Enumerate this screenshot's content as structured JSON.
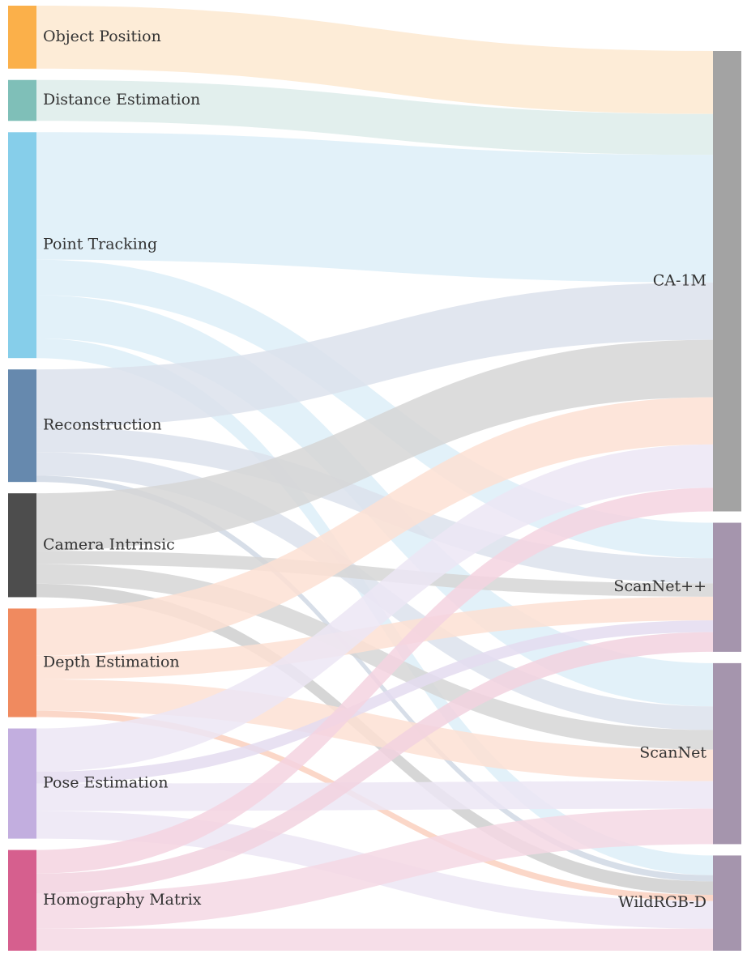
{
  "chart_data": {
    "type": "sankey",
    "title": "",
    "sources": [
      {
        "id": "object_position",
        "label": "Object Position",
        "color": "#FBB04A"
      },
      {
        "id": "distance_estimation",
        "label": "Distance Estimation",
        "color": "#7FBFB8"
      },
      {
        "id": "point_tracking",
        "label": "Point Tracking",
        "color": "#86CEEA"
      },
      {
        "id": "reconstruction",
        "label": "Reconstruction",
        "color": "#6689AE"
      },
      {
        "id": "camera_intrinsic",
        "label": "Camera Intrinsic",
        "color": "#4D4D4D"
      },
      {
        "id": "depth_estimation",
        "label": "Depth Estimation",
        "color": "#F08A5F"
      },
      {
        "id": "pose_estimation",
        "label": "Pose Estimation",
        "color": "#C2AEDF"
      },
      {
        "id": "homography_matrix",
        "label": "Homography Matrix",
        "color": "#D65F8E"
      }
    ],
    "targets": [
      {
        "id": "ca1m",
        "label": "CA-1M",
        "color": "#A3A3A3"
      },
      {
        "id": "scannetpp",
        "label": "ScanNet++",
        "color": "#A595AD"
      },
      {
        "id": "scannet",
        "label": "ScanNet",
        "color": "#A595AD"
      },
      {
        "id": "wildrgbd",
        "label": "WildRGB-D",
        "color": "#A595AD"
      }
    ],
    "links": [
      {
        "source": "object_position",
        "target": "ca1m",
        "value": 80,
        "color": "#FDE9D0"
      },
      {
        "source": "distance_estimation",
        "target": "ca1m",
        "value": 52,
        "color": "#DDECEA"
      },
      {
        "source": "point_tracking",
        "target": "ca1m",
        "value": 162,
        "color": "#DDEEF8"
      },
      {
        "source": "point_tracking",
        "target": "scannetpp",
        "value": 45,
        "color": "#DDEEF8"
      },
      {
        "source": "point_tracking",
        "target": "scannet",
        "value": 55,
        "color": "#DDEEF8"
      },
      {
        "source": "point_tracking",
        "target": "wildrgbd",
        "value": 25,
        "color": "#DDEEF8"
      },
      {
        "source": "reconstruction",
        "target": "ca1m",
        "value": 73,
        "color": "#DCE2EC"
      },
      {
        "source": "reconstruction",
        "target": "scannetpp",
        "value": 32,
        "color": "#DCE2EC"
      },
      {
        "source": "reconstruction",
        "target": "scannet",
        "value": 30,
        "color": "#DCE2EC"
      },
      {
        "source": "reconstruction",
        "target": "wildrgbd",
        "value": 8,
        "color": "#D0D8E4"
      },
      {
        "source": "camera_intrinsic",
        "target": "ca1m",
        "value": 73,
        "color": "#D6D6D6"
      },
      {
        "source": "camera_intrinsic",
        "target": "scannetpp",
        "value": 17,
        "color": "#D6D6D6"
      },
      {
        "source": "camera_intrinsic",
        "target": "scannet",
        "value": 25,
        "color": "#D6D6D6"
      },
      {
        "source": "camera_intrinsic",
        "target": "wildrgbd",
        "value": 17,
        "color": "#CFCFCF"
      },
      {
        "source": "depth_estimation",
        "target": "ca1m",
        "value": 60,
        "color": "#FDE0D4"
      },
      {
        "source": "depth_estimation",
        "target": "scannetpp",
        "value": 30,
        "color": "#FDE0D4"
      },
      {
        "source": "depth_estimation",
        "target": "scannet",
        "value": 40,
        "color": "#FDE0D4"
      },
      {
        "source": "depth_estimation",
        "target": "wildrgbd",
        "value": 8,
        "color": "#FAD0BE"
      },
      {
        "source": "pose_estimation",
        "target": "ca1m",
        "value": 55,
        "color": "#ECE6F5"
      },
      {
        "source": "pose_estimation",
        "target": "scannetpp",
        "value": 15,
        "color": "#E4DCF0"
      },
      {
        "source": "pose_estimation",
        "target": "scannet",
        "value": 35,
        "color": "#ECE6F5"
      },
      {
        "source": "pose_estimation",
        "target": "wildrgbd",
        "value": 35,
        "color": "#ECE6F5"
      },
      {
        "source": "homography_matrix",
        "target": "ca1m",
        "value": 30,
        "color": "#F4D4E1"
      },
      {
        "source": "homography_matrix",
        "target": "scannetpp",
        "value": 25,
        "color": "#F2D2DF"
      },
      {
        "source": "homography_matrix",
        "target": "scannet",
        "value": 45,
        "color": "#F4D8E4"
      },
      {
        "source": "homography_matrix",
        "target": "wildrgbd",
        "value": 28,
        "color": "#F4D8E4"
      }
    ]
  }
}
